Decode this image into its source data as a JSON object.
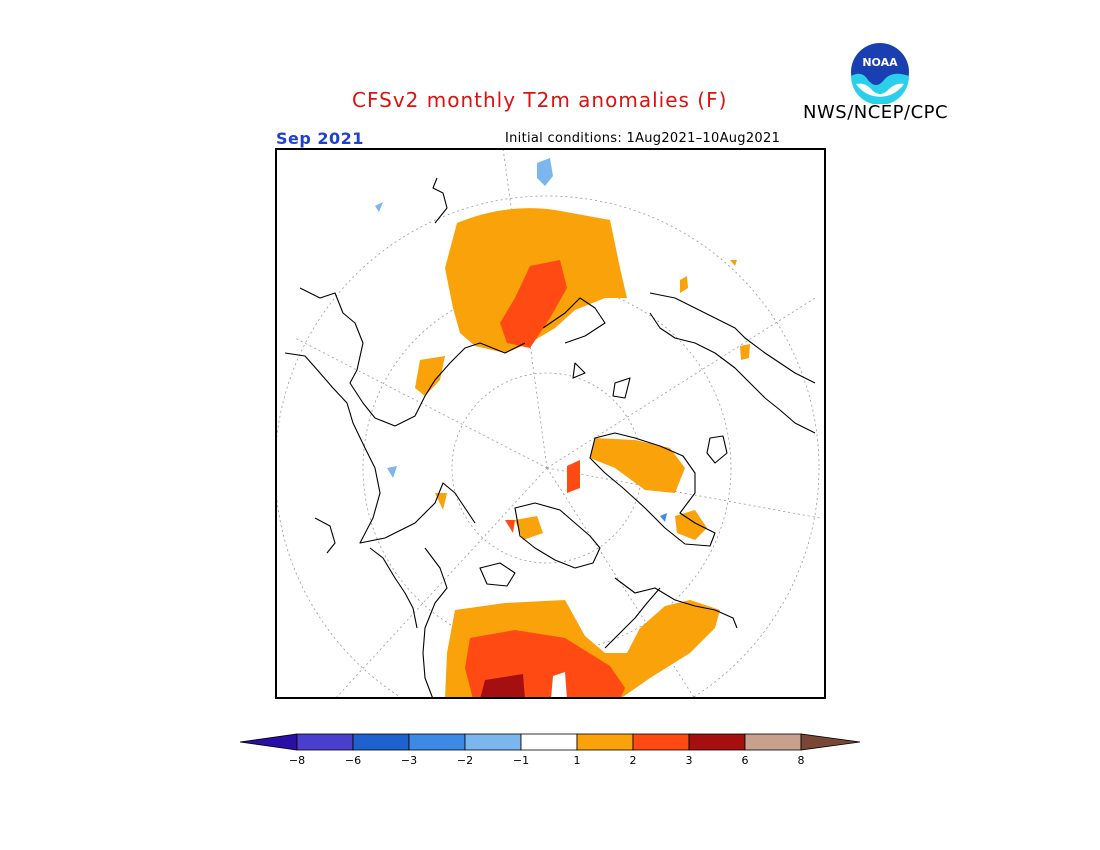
{
  "title": "CFSv2 monthly T2m anomalies (F)",
  "agency": "NWS/NCEP/CPC",
  "logo": {
    "text": "NOAA",
    "icon": "noaa-logo-icon"
  },
  "valid_month": "Sep 2021",
  "initial_conditions": "Initial conditions: 1Aug2021–10Aug2021",
  "colorbar": {
    "colors": [
      "#2a0fa6",
      "#4a3fcc",
      "#1f62cf",
      "#3d8ae6",
      "#7cb6ef",
      "#ffffff",
      "#f9a20a",
      "#ff4a14",
      "#a50f0f",
      "#c8a08e",
      "#7a4636"
    ],
    "labels": [
      "−8",
      "−6",
      "−3",
      "−2",
      "−1",
      "1",
      "2",
      "3",
      "6",
      "8"
    ]
  }
}
